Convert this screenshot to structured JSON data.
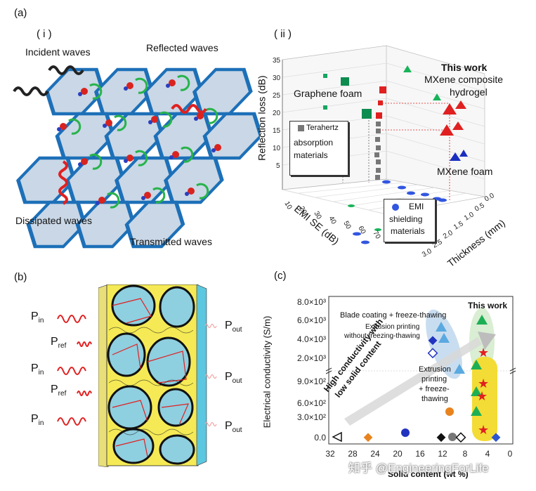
{
  "panel_a": {
    "label": "(a)",
    "sub_i": "( i )",
    "sub_ii": "( ii )",
    "incident": "Incident waves",
    "reflected": "Reflected waves",
    "dissipated": "Dissipated waves",
    "transmitted": "Transmitted waves"
  },
  "panel_a_ii": {
    "title_this": "This work",
    "mxene_hydrogel_1": "MXene composite",
    "mxene_hydrogel_2": "hydrogel",
    "graphene_foam": "Graphene foam",
    "terahertz_1": "Terahertz",
    "terahertz_2": "absorption",
    "terahertz_3": "materials",
    "mxene_foam": "MXene foam",
    "emi_1": "EMI",
    "emi_2": "shielding",
    "emi_3": "materials",
    "z_axis": "Reflection loss (dB)",
    "x_axis": "EMI SE (dB)",
    "y_axis": "Thickness (mm)",
    "z_ticks": [
      "35",
      "30",
      "25",
      "20",
      "15",
      "10",
      "5"
    ],
    "x_ticks": [
      "10",
      "20",
      "30",
      "40",
      "50",
      "60",
      "70"
    ],
    "y_ticks": [
      "0.0",
      "0.5",
      "1.0",
      "1.5",
      "2.0",
      "2.5",
      "3.0"
    ]
  },
  "panel_b": {
    "label": "(b)",
    "p_in": "P",
    "p_in_sub": "in",
    "p_ref_sub": "ref",
    "p_out_sub": "out"
  },
  "panel_c": {
    "label": "(c)",
    "this_work": "This work",
    "blade": "Blade coating + freeze-thawing",
    "extrusion_1": "Extrusion printing",
    "extrusion_2": "without freezing-thawing",
    "ext_ft_1": "Extrusion",
    "ext_ft_2": "printing",
    "ext_ft_3": "+ freeze-",
    "ext_ft_4": "thawing",
    "arrow_text_1": "High conductivity with",
    "arrow_text_2": "low solid content",
    "ylabel": "Electrical conductivity (S/m)",
    "xlabel": "Solid content (wt %)",
    "y_ticks_top": [
      "8.0×10³",
      "6.0×10³",
      "4.0×10³",
      "2.0×10³"
    ],
    "y_ticks_bottom": [
      "9.0×10²",
      "6.0×10²",
      "3.0×10²",
      "0.0"
    ],
    "x_ticks": [
      "32",
      "28",
      "24",
      "20",
      "16",
      "12",
      "8",
      "4",
      "0"
    ]
  },
  "watermark": "知乎 @EngineeringForLife",
  "chart_data": {
    "type": "scatter",
    "xlabel": "Solid content (wt %)",
    "ylabel": "Electrical conductivity (S/m)",
    "series": [
      {
        "name": "This work",
        "points": [
          [
            4,
            7500
          ],
          [
            4,
            4800
          ],
          [
            4,
            1700
          ],
          [
            3.8,
            900
          ],
          [
            4,
            800
          ],
          [
            3.8,
            600
          ],
          [
            4,
            320
          ],
          [
            4,
            120
          ]
        ]
      },
      {
        "name": "Blade coating + freeze-thawing",
        "points": [
          [
            11,
            6500
          ],
          [
            11.5,
            5700
          ],
          [
            10.5,
            1800
          ]
        ]
      },
      {
        "name": "Extrusion printing without freezing-thawing",
        "points": [
          [
            12,
            4500
          ],
          [
            11.5,
            3000
          ]
        ]
      },
      {
        "name": "Extrusion printing + freeze-thawing",
        "points": [
          [
            4.5,
            1400
          ],
          [
            4,
            700
          ],
          [
            5,
            550
          ],
          [
            4,
            500
          ]
        ]
      }
    ]
  }
}
